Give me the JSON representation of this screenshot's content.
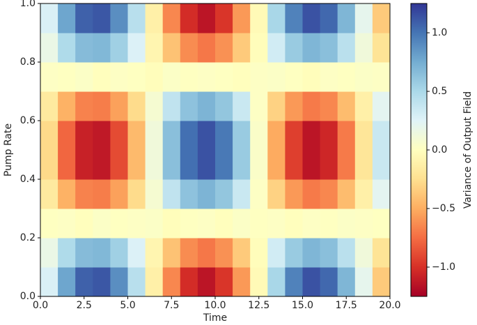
{
  "chart_data": {
    "type": "heatmap",
    "xlabel": "Time",
    "ylabel": "Pump Rate",
    "xlim": [
      0,
      20
    ],
    "ylim": [
      0,
      1
    ],
    "xticks": [
      {
        "value": 0,
        "label": "0.0"
      },
      {
        "value": 2.5,
        "label": "2.5"
      },
      {
        "value": 5,
        "label": "5.0"
      },
      {
        "value": 7.5,
        "label": "7.5"
      },
      {
        "value": 10,
        "label": "10.0"
      },
      {
        "value": 12.5,
        "label": "12.5"
      },
      {
        "value": 15,
        "label": "15.0"
      },
      {
        "value": 17.5,
        "label": "17.5"
      },
      {
        "value": 20,
        "label": "20.0"
      }
    ],
    "yticks": [
      {
        "value": 0,
        "label": "0.0"
      },
      {
        "value": 0.2,
        "label": "0.2"
      },
      {
        "value": 0.4,
        "label": "0.4"
      },
      {
        "value": 0.6,
        "label": "0.6"
      },
      {
        "value": 0.8,
        "label": "0.8"
      },
      {
        "value": 1,
        "label": "1.0"
      }
    ],
    "z": [
      [
        0.28,
        0.78,
        1.08,
        1.12,
        0.89,
        0.44,
        -0.12,
        -0.65,
        -1.02,
        -1.14,
        -0.98,
        -0.58,
        -0.04,
        0.51,
        0.94,
        1.14,
        1.05,
        0.7,
        0.2,
        -0.36
      ],
      [
        0.17,
        0.48,
        0.67,
        0.69,
        0.55,
        0.27,
        -0.08,
        -0.4,
        -0.63,
        -0.71,
        -0.61,
        -0.36,
        -0.02,
        0.32,
        0.58,
        0.7,
        0.65,
        0.43,
        0.12,
        -0.22
      ],
      [
        0.01,
        0.02,
        -0.01,
        0.03,
        0.01,
        0.02,
        0.03,
        -0.02,
        0.01,
        0.02,
        -0.01,
        0.03,
        0.01,
        0.02,
        -0.01,
        0.02,
        0.01,
        0.03,
        0.02,
        0.01
      ],
      [
        -0.17,
        -0.48,
        -0.67,
        -0.69,
        -0.55,
        -0.27,
        0.08,
        0.4,
        0.63,
        0.71,
        0.61,
        0.36,
        0.02,
        -0.32,
        -0.58,
        -0.7,
        -0.65,
        -0.43,
        -0.12,
        0.22
      ],
      [
        -0.28,
        -0.78,
        -1.08,
        -1.12,
        -0.89,
        -0.44,
        0.12,
        0.65,
        1.02,
        1.14,
        0.98,
        0.58,
        0.04,
        -0.51,
        -0.94,
        -1.14,
        -1.05,
        -0.7,
        -0.2,
        0.36
      ],
      [
        -0.28,
        -0.78,
        -1.08,
        -1.12,
        -0.89,
        -0.44,
        0.12,
        0.65,
        1.02,
        1.14,
        0.98,
        0.58,
        0.04,
        -0.51,
        -0.94,
        -1.14,
        -1.05,
        -0.7,
        -0.2,
        0.36
      ],
      [
        -0.17,
        -0.48,
        -0.67,
        -0.69,
        -0.55,
        -0.27,
        0.08,
        0.4,
        0.63,
        0.71,
        0.61,
        0.36,
        0.02,
        -0.32,
        -0.58,
        -0.7,
        -0.65,
        -0.43,
        -0.12,
        0.22
      ],
      [
        0.02,
        0.01,
        0.03,
        -0.01,
        0.02,
        0.01,
        -0.02,
        0.03,
        0.01,
        0.02,
        0.01,
        -0.01,
        0.02,
        0.03,
        0.01,
        -0.02,
        0.02,
        0.01,
        0.03,
        0.02
      ],
      [
        0.17,
        0.48,
        0.67,
        0.69,
        0.55,
        0.27,
        -0.08,
        -0.4,
        -0.63,
        -0.71,
        -0.61,
        -0.36,
        -0.02,
        0.32,
        0.58,
        0.7,
        0.65,
        0.43,
        0.12,
        -0.22
      ],
      [
        0.28,
        0.78,
        1.08,
        1.12,
        0.89,
        0.44,
        -0.12,
        -0.65,
        -1.02,
        -1.14,
        -0.98,
        -0.58,
        -0.04,
        0.51,
        0.94,
        1.14,
        1.05,
        0.7,
        0.2,
        -0.36
      ]
    ],
    "colormap": [
      "#a50026",
      "#d73027",
      "#f46d43",
      "#fdae61",
      "#fee090",
      "#ffffbf",
      "#e0f3f8",
      "#abd9e9",
      "#74add1",
      "#4575b4",
      "#313695"
    ],
    "colorbar": {
      "label": "Variance of Output Field",
      "lim": [
        -1.25,
        1.25
      ],
      "ticks": [
        {
          "value": -1,
          "label": "−1.0"
        },
        {
          "value": -0.5,
          "label": "−0.5"
        },
        {
          "value": 0,
          "label": "0.0"
        },
        {
          "value": 0.5,
          "label": "0.5"
        },
        {
          "value": 1,
          "label": "1.0"
        }
      ]
    }
  }
}
